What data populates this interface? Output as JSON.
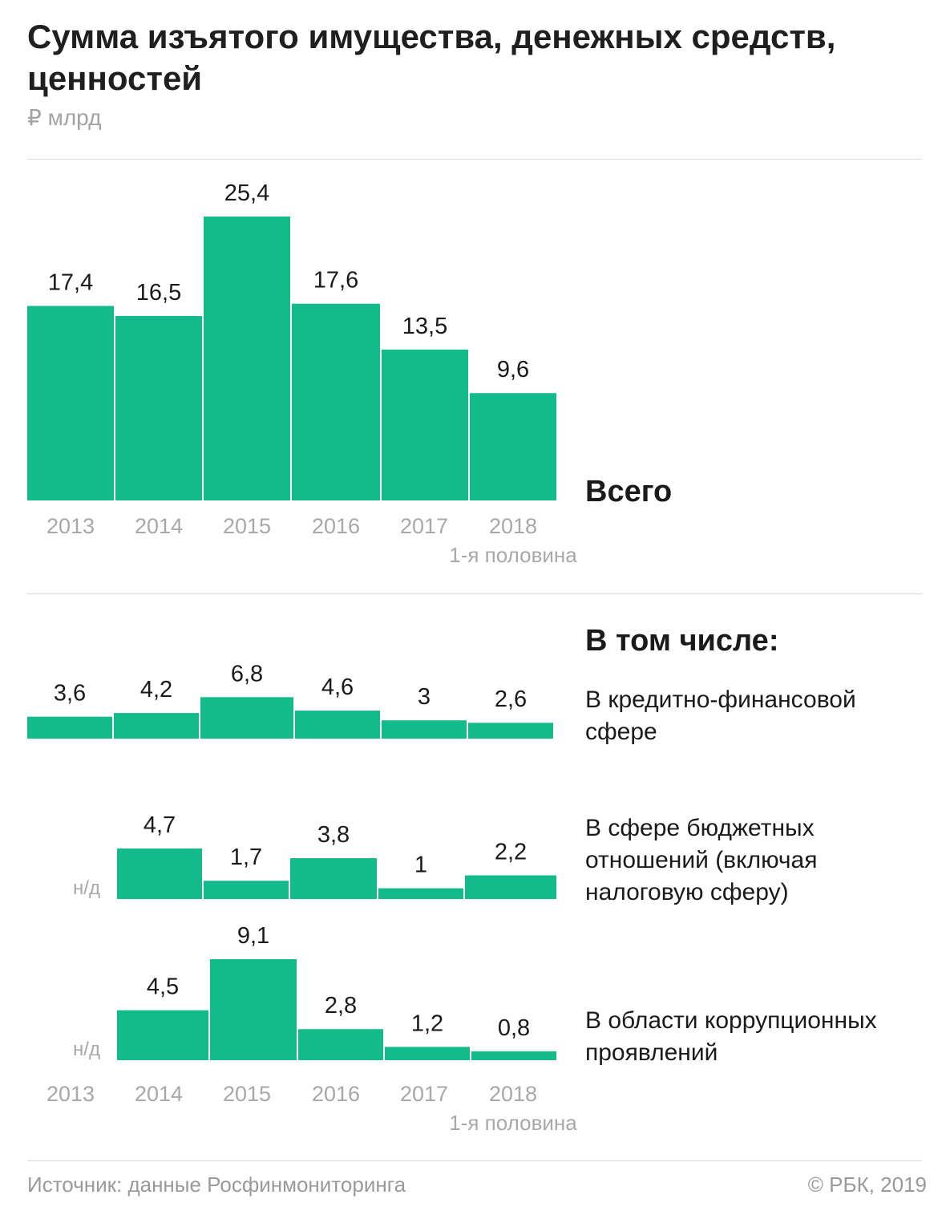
{
  "header": {
    "title": "Сумма изъятого имущества, денежных средств, ценностей",
    "unit": "₽ млрд"
  },
  "labels": {
    "total": "Всего",
    "including": "В том числе:",
    "half_note": "1-я половина"
  },
  "footer": {
    "source": "Источник: данные Росфинмониторинга",
    "copyright": "© РБК, 2019"
  },
  "colors": {
    "bar": "#13bb8a"
  },
  "chart_data": [
    {
      "type": "bar",
      "id": "total",
      "title": "Всего",
      "categories": [
        "2013",
        "2014",
        "2015",
        "2016",
        "2017",
        "2018"
      ],
      "values": [
        17.4,
        16.5,
        25.4,
        17.6,
        13.5,
        9.6
      ],
      "value_labels": [
        "17,4",
        "16,5",
        "25,4",
        "17,6",
        "13,5",
        "9,6"
      ],
      "ylim": [
        0,
        25.4
      ]
    },
    {
      "type": "bar",
      "id": "finance",
      "title": "В кредитно-финансовой сфере",
      "categories": [
        "2013",
        "2014",
        "2015",
        "2016",
        "2017",
        "2018"
      ],
      "values": [
        3.6,
        4.2,
        6.8,
        4.6,
        3,
        2.6
      ],
      "value_labels": [
        "3,6",
        "4,2",
        "6,8",
        "4,6",
        "3",
        "2,6"
      ]
    },
    {
      "type": "bar",
      "id": "budget",
      "title": "В сфере бюджетных отношений (включая налоговую сферу)",
      "categories": [
        "2013",
        "2014",
        "2015",
        "2016",
        "2017",
        "2018"
      ],
      "values": [
        null,
        4.7,
        1.7,
        3.8,
        1,
        2.2
      ],
      "value_labels": [
        "н/д",
        "4,7",
        "1,7",
        "3,8",
        "1",
        "2,2"
      ]
    },
    {
      "type": "bar",
      "id": "corruption",
      "title": "В области коррупционных проявлений",
      "categories": [
        "2013",
        "2014",
        "2015",
        "2016",
        "2017",
        "2018"
      ],
      "values": [
        null,
        4.5,
        9.1,
        2.8,
        1.2,
        0.8
      ],
      "value_labels": [
        "н/д",
        "4,5",
        "9,1",
        "2,8",
        "1,2",
        "0,8"
      ]
    }
  ]
}
